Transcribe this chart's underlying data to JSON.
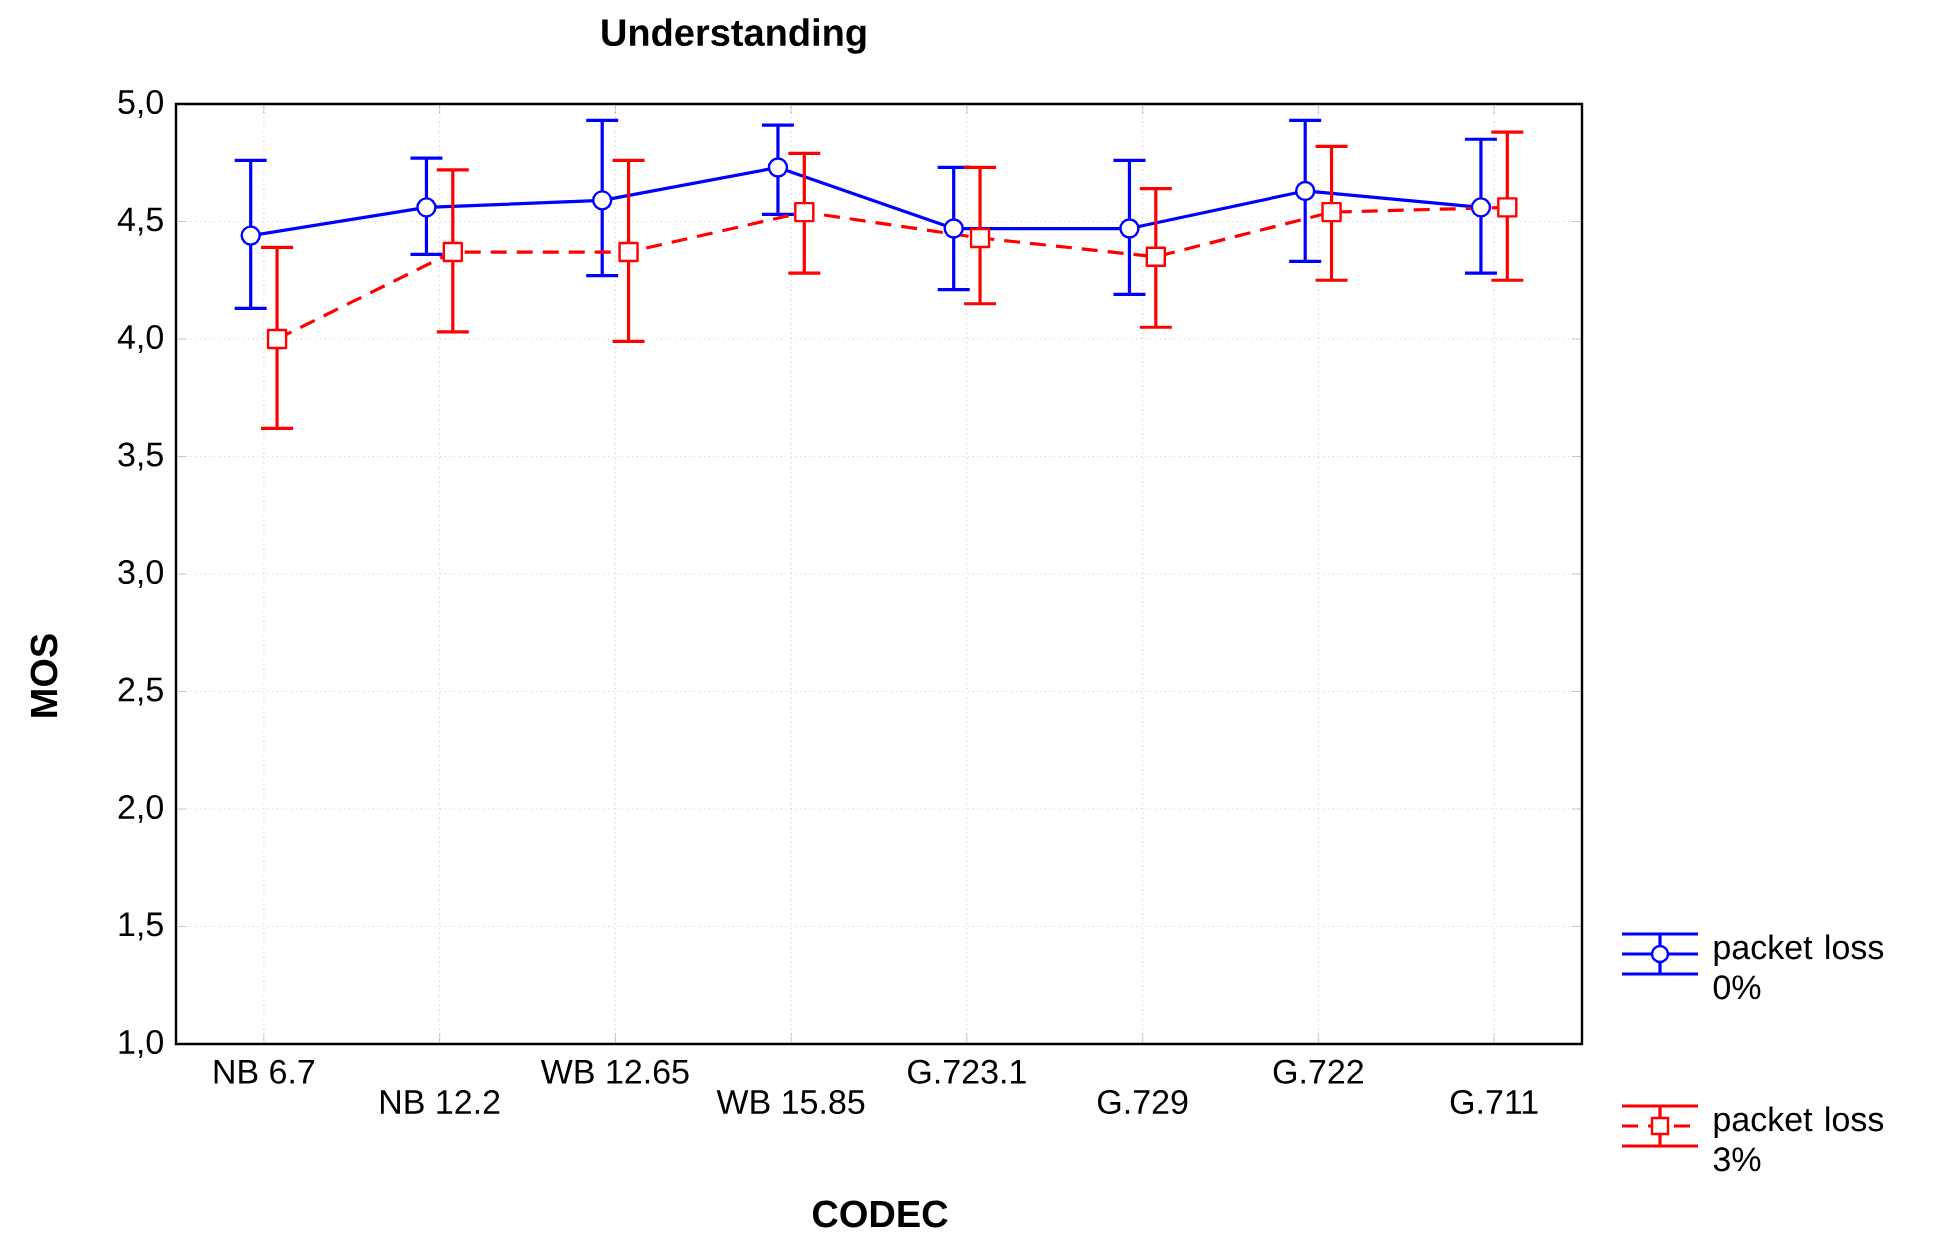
{
  "chart_data": {
    "type": "line",
    "title": "Understanding",
    "xlabel": "CODEC",
    "ylabel": "MOS",
    "categories": [
      "NB 6.7",
      "NB 12.2",
      "WB 12.65",
      "WB 15.85",
      "G.723.1",
      "G.729",
      "G.722",
      "G.711"
    ],
    "series": [
      {
        "name": "packet loss 0%",
        "color": "#0000ff",
        "marker": "circle",
        "line_style": "solid",
        "values": [
          4.44,
          4.56,
          4.59,
          4.73,
          4.47,
          4.47,
          4.63,
          4.56
        ],
        "errors": [
          [
            4.13,
            4.76
          ],
          [
            4.36,
            4.77
          ],
          [
            4.27,
            4.93
          ],
          [
            4.53,
            4.91
          ],
          [
            4.21,
            4.73
          ],
          [
            4.19,
            4.76
          ],
          [
            4.33,
            4.93
          ],
          [
            4.28,
            4.85
          ]
        ]
      },
      {
        "name": "packet loss 3%",
        "color": "#ff0000",
        "marker": "square",
        "line_style": "dashed",
        "values": [
          4.0,
          4.37,
          4.37,
          4.54,
          4.43,
          4.35,
          4.54,
          4.56
        ],
        "errors": [
          [
            3.62,
            4.39
          ],
          [
            4.03,
            4.72
          ],
          [
            3.99,
            4.76
          ],
          [
            4.28,
            4.79
          ],
          [
            4.15,
            4.73
          ],
          [
            4.05,
            4.64
          ],
          [
            4.25,
            4.82
          ],
          [
            4.25,
            4.88
          ]
        ]
      }
    ],
    "ylim": [
      1,
      5
    ],
    "yticks": [
      {
        "value": 1,
        "label": "1,0"
      },
      {
        "value": 1.5,
        "label": "1,5"
      },
      {
        "value": 2,
        "label": "2,0"
      },
      {
        "value": 2.5,
        "label": "2,5"
      },
      {
        "value": 3,
        "label": "3,0"
      },
      {
        "value": 3.5,
        "label": "3,5"
      },
      {
        "value": 4,
        "label": "4,0"
      },
      {
        "value": 4.5,
        "label": "4,5"
      },
      {
        "value": 5,
        "label": "5,0"
      }
    ],
    "grid": true,
    "legend": "bottom right"
  }
}
